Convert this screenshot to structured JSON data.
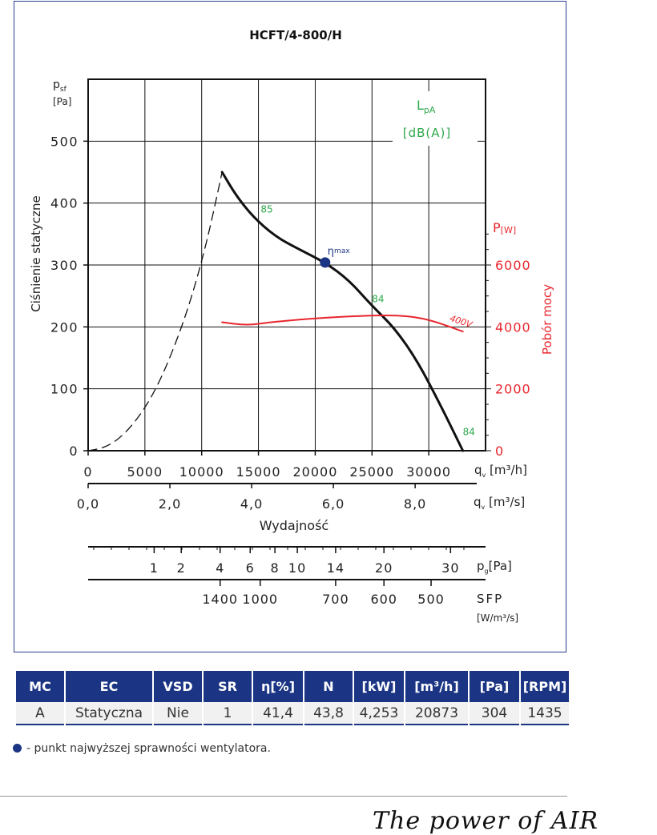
{
  "chart_data": {
    "type": "line",
    "title": "HCFT/4-800/H",
    "ylabel": "Ciśnienie statyczne",
    "y_unit_symbol": "p",
    "y_unit_sub": "sf",
    "y_unit": "[Pa]",
    "ylim": [
      0,
      600
    ],
    "y_ticks": [
      0,
      100,
      200,
      300,
      400,
      500
    ],
    "xlabel": "Wydajność",
    "x_unit_symbol": "q",
    "x_unit_sub": "v",
    "x_unit_h": "[m³/h]",
    "x_unit_s": "[m³/s]",
    "xlim": [
      0,
      35000
    ],
    "x_ticks_h": [
      0,
      5000,
      10000,
      15000,
      20000,
      25000,
      30000
    ],
    "x_ticks_s": [
      0.0,
      2.0,
      4.0,
      6.0,
      8.0
    ],
    "x_ticks_s_labels": [
      "0,0",
      "2,0",
      "4,0",
      "6,0",
      "8,0"
    ],
    "right_axis": {
      "label": "Pobór mocy",
      "unit_symbol": "P",
      "unit": "[W]",
      "ylim": [
        0,
        12000
      ],
      "ticks": [
        0,
        2000,
        4000,
        6000
      ],
      "color": "#e8262e"
    },
    "sound_label_symbol": "L",
    "sound_label_sub": "pA",
    "sound_label_unit": "[dB(A)]",
    "series": [
      {
        "name": "",
        "color": "#111111",
        "style": "solid",
        "x": [
          11800,
          13000,
          14500,
          16500,
          18500,
          20873,
          23000,
          25000,
          27000,
          29000,
          31000,
          33000
        ],
        "y": [
          450,
          413,
          378,
          346,
          326,
          304,
          275,
          234,
          198,
          145,
          75,
          0
        ]
      },
      {
        "name": "",
        "color": "#111111",
        "style": "dashed",
        "x": [
          0,
          1500,
          3000,
          4500,
          6000,
          7500,
          9000,
          10500,
          11800
        ],
        "y": [
          0,
          5,
          23,
          55,
          100,
          163,
          240,
          340,
          450
        ]
      },
      {
        "name": "400V",
        "color": "#e8262e",
        "style": "solid",
        "x": [
          11800,
          14000,
          16000,
          20000,
          24000,
          27500,
          30000,
          33000
        ],
        "y": [
          4150,
          4050,
          4150,
          4280,
          4360,
          4380,
          4250,
          3850
        ]
      }
    ],
    "curve_labels": [
      {
        "text": "85",
        "x": 15200,
        "y": 385,
        "color": "#2ea84b"
      },
      {
        "text": "84",
        "x": 25000,
        "y": 240,
        "color": "#2ea84b"
      },
      {
        "text": "84",
        "x": 33000,
        "y": 25,
        "color": "#2ea84b"
      },
      {
        "text": "400V",
        "x": 31800,
        "y": 210,
        "color": "#e8262e"
      }
    ],
    "eta_point": {
      "x": 20873,
      "y": 304,
      "symbol": "η",
      "label": "max"
    },
    "pg_scale": {
      "unit_symbol": "p",
      "unit_sub": "g",
      "unit": "[Pa]",
      "ticks": [
        {
          "label": "1",
          "x": 11200
        },
        {
          "label": "2",
          "x": 15800
        },
        {
          "label": "4",
          "x": 22400
        },
        {
          "label": "6",
          "x": 27500
        },
        {
          "label": "8",
          "x": 31700
        },
        {
          "label": "10",
          "x": 35500
        },
        {
          "label": "14",
          "x": 42000
        },
        {
          "label": "20",
          "x": 50200
        },
        {
          "label": "30",
          "x": 61500
        }
      ]
    },
    "sfp_scale": {
      "label": "SFP",
      "unit": "[W/m³/s]",
      "ticks": [
        {
          "label": "1400",
          "x": 22400
        },
        {
          "label": "1000",
          "x": 29200
        },
        {
          "label": "700",
          "x": 42000
        },
        {
          "label": "600",
          "x": 50200
        },
        {
          "label": "500",
          "x": 58200
        }
      ]
    }
  },
  "table": {
    "headers": [
      "MC",
      "EC",
      "VSD",
      "SR",
      "η[%]",
      "N",
      "[kW]",
      "[m³/h]",
      "[Pa]",
      "[RPM]"
    ],
    "row": [
      "A",
      "Statyczna",
      "Nie",
      "1",
      "41,4",
      "43,8",
      "4,253",
      "20873",
      "304",
      "1435"
    ]
  },
  "legend_text": "- punkt najwyższej sprawności wentylatora.",
  "tagline": "The power of AIR",
  "colors": {
    "accent": "#1b3584",
    "power": "#e8262e",
    "sound": "#2ea84b"
  }
}
